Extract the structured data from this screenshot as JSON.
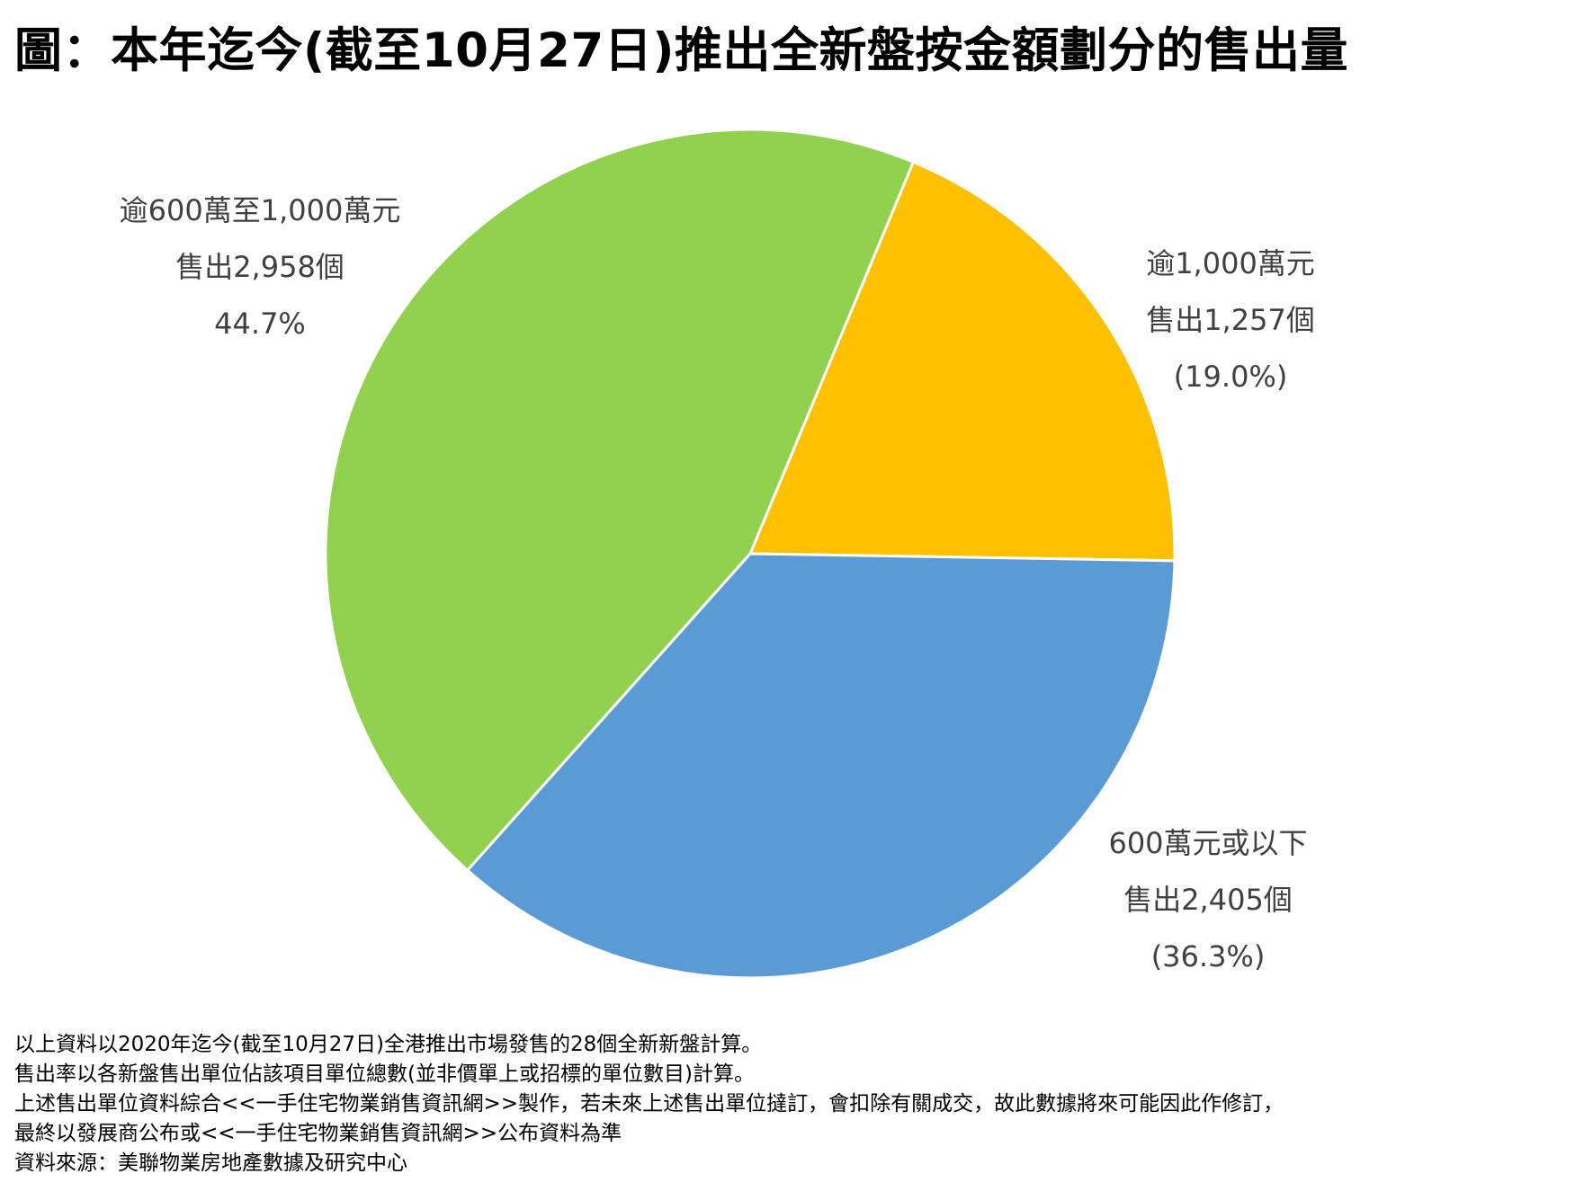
{
  "title": "圖：本年迄今(截至10月27日)推出全新盤按金額劃分的售出量",
  "chart_data": {
    "type": "pie",
    "title": "圖：本年迄今(截至10月27日)推出全新盤按金額劃分的售出量",
    "slices": [
      {
        "name": "逾1,000萬元",
        "count": 1257,
        "percent": 19.0,
        "color": "#FFC000",
        "label_lines": [
          "逾1,000萬元",
          "售出1,257個",
          "(19.0%)"
        ]
      },
      {
        "name": "600萬元或以下",
        "count": 2405,
        "percent": 36.3,
        "color": "#5B9BD5",
        "label_lines": [
          "600萬元或以下",
          "售出2,405個",
          "(36.3%)"
        ]
      },
      {
        "name": "逾600萬至1,000萬元",
        "count": 2958,
        "percent": 44.7,
        "color": "#92D050",
        "label_lines": [
          "逾600萬至1,000萬元",
          "售出2,958個",
          "44.7%"
        ]
      }
    ]
  },
  "notes": [
    "以上資料以2020年迄今(截至10月27日)全港推出市場發售的28個全新新盤計算。",
    "售出率以各新盤售出單位佔該項目單位總數(並非價單上或招標的單位數目)計算。",
    "上述售出單位資料綜合<<一手住宅物業銷售資訊網>>製作，若未來上述售出單位撻訂，會扣除有關成交，故此數據將來可能因此作修訂，",
    "最終以發展商公布或<<一手住宅物業銷售資訊網>>公布資料為準",
    "資料來源：美聯物業房地產數據及研究中心"
  ]
}
